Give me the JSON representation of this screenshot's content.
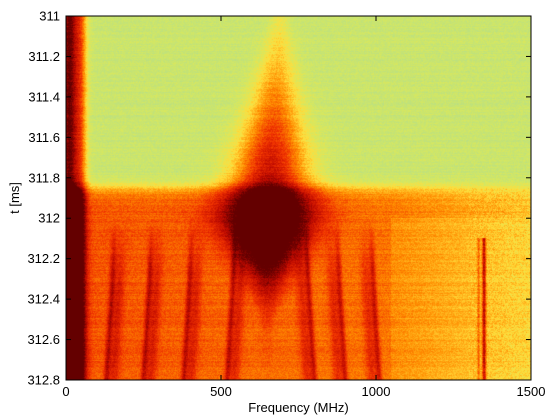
{
  "chart_data": {
    "type": "heatmap",
    "title": "",
    "xlabel": "Frequency (MHz)",
    "ylabel": "t [ms]",
    "xlim": [
      0,
      1500
    ],
    "ylim": [
      311,
      312.8
    ],
    "y_reversed": true,
    "x_ticks": [
      0,
      500,
      1000,
      1500
    ],
    "x_tick_labels": [
      "0",
      "500",
      "1000",
      "1500"
    ],
    "y_ticks": [
      311,
      311.2,
      311.4,
      311.6,
      311.8,
      312,
      312.2,
      312.4,
      312.6,
      312.8
    ],
    "y_tick_labels": [
      "311",
      "311.2",
      "311.4",
      "311.6",
      "311.8",
      "312",
      "312.2",
      "312.4",
      "312.6",
      "312.8"
    ],
    "grid": false,
    "colormap": "hot-to-green (dark red = high, yellow-green = low)",
    "colors": {
      "high": "#7a0000",
      "mid_high": "#e82000",
      "mid": "#ff7a00",
      "low": "#ffe040",
      "background": "#c4e87a"
    },
    "features": [
      {
        "kind": "vertical_band",
        "x": [
          0,
          80
        ],
        "t": [
          311,
          312.8
        ],
        "intensity": "high"
      },
      {
        "kind": "central_lobe",
        "x_center": 650,
        "t_center": 312.0,
        "intensity": "peak"
      },
      {
        "kind": "transition",
        "t": 311.85,
        "note": "background changes from green to orange/red below"
      },
      {
        "kind": "arcs",
        "t": [
          312.0,
          312.8
        ],
        "x_positions": [
          150,
          270,
          400,
          540,
          780,
          880,
          990
        ]
      },
      {
        "kind": "vertical_line",
        "x": 1350,
        "t": [
          312.1,
          312.8
        ],
        "intensity": "high"
      }
    ]
  }
}
